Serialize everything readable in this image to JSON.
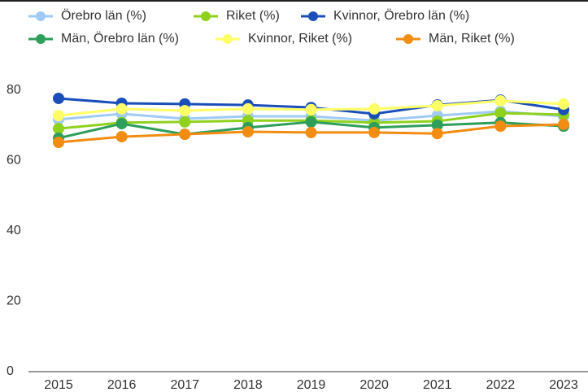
{
  "chart_data": {
    "type": "line",
    "categories": [
      "2015",
      "2016",
      "2017",
      "2018",
      "2019",
      "2020",
      "2021",
      "2022",
      "2023"
    ],
    "series": [
      {
        "name": "Örebro län (%)",
        "color": "#9fcbf5",
        "values": [
          71.7,
          73.3,
          71.9,
          72.6,
          72.6,
          71.4,
          72.8,
          74.0,
          72.6
        ]
      },
      {
        "name": "Riket (%)",
        "color": "#8fd11d",
        "values": [
          69.1,
          70.8,
          71.0,
          71.4,
          71.4,
          70.8,
          71.2,
          73.5,
          73.1
        ]
      },
      {
        "name": "Kvinnor, Örebro län (%)",
        "color": "#1a4fba",
        "values": [
          77.7,
          76.3,
          76.1,
          75.8,
          75.1,
          73.3,
          75.8,
          77.2,
          74.5
        ]
      },
      {
        "name": "Män, Örebro län (%)",
        "color": "#2e9e5b",
        "values": [
          66.4,
          70.5,
          67.5,
          69.4,
          71.0,
          69.4,
          70.1,
          70.8,
          69.8
        ]
      },
      {
        "name": "Kvinnor, Riket (%)",
        "color": "#ffff66",
        "values": [
          72.8,
          74.7,
          74.2,
          74.7,
          74.5,
          74.7,
          75.6,
          77.0,
          76.1
        ]
      },
      {
        "name": "Män, Riket (%)",
        "color": "#f28c12",
        "values": [
          65.2,
          66.8,
          67.5,
          68.2,
          68.0,
          68.0,
          67.7,
          69.8,
          70.3
        ]
      }
    ],
    "ylim": [
      0,
      85
    ],
    "yticks": [
      0,
      20,
      40,
      60,
      80
    ],
    "grid": false
  }
}
